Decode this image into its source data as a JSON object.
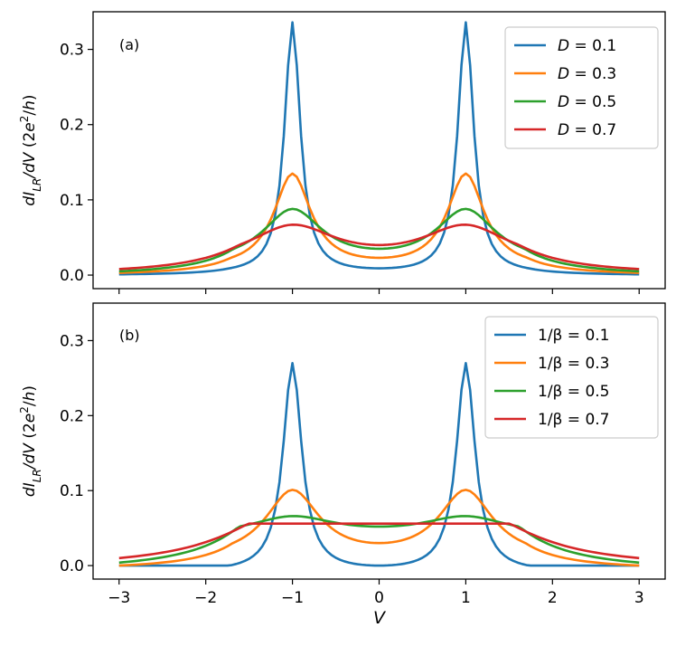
{
  "chart_data": [
    {
      "type": "line",
      "panel_label": "(a)",
      "ylabel": "dI_LR/dV (2e²/h)",
      "xlabel": "",
      "xlim": [
        -3.3,
        3.3
      ],
      "ylim": [
        -0.018,
        0.35
      ],
      "xticks": [
        -3,
        -2,
        -1,
        0,
        1,
        2,
        3
      ],
      "yticks": [
        0.0,
        0.1,
        0.2,
        0.3
      ],
      "ytick_labels": [
        "0.0",
        "0.1",
        "0.2",
        "0.3"
      ],
      "legend_position": "top-right",
      "legend_prefix": "D",
      "peak_position": 1.0,
      "series": [
        {
          "name": "D = 0.1",
          "param": "0.1",
          "color": "#1f77b4",
          "peak": 0.336,
          "valley": 0.009,
          "tail": 0.001,
          "width": 0.11
        },
        {
          "name": "D = 0.3",
          "param": "0.3",
          "color": "#ff7f0e",
          "peak": 0.135,
          "valley": 0.023,
          "tail": 0.003,
          "width": 0.26
        },
        {
          "name": "D = 0.5",
          "param": "0.5",
          "color": "#2ca02c",
          "peak": 0.088,
          "valley": 0.035,
          "tail": 0.005,
          "width": 0.42
        },
        {
          "name": "D = 0.7",
          "param": "0.7",
          "color": "#d62728",
          "peak": 0.067,
          "valley": 0.04,
          "tail": 0.008,
          "width": 0.62
        }
      ]
    },
    {
      "type": "line",
      "panel_label": "(b)",
      "ylabel": "dI_LR/dV (2e²/h)",
      "xlabel": "V",
      "xlim": [
        -3.3,
        3.3
      ],
      "ylim": [
        -0.018,
        0.35
      ],
      "xticks": [
        -3,
        -2,
        -1,
        0,
        1,
        2,
        3
      ],
      "xtick_labels": [
        "−3",
        "−2",
        "−1",
        "0",
        "1",
        "2",
        "3"
      ],
      "yticks": [
        0.0,
        0.1,
        0.2,
        0.3
      ],
      "ytick_labels": [
        "0.0",
        "0.1",
        "0.2",
        "0.3"
      ],
      "legend_position": "top-right",
      "legend_prefix": "1/β",
      "peak_position": 1.0,
      "series": [
        {
          "name": "1/β = 0.1",
          "param": "0.1",
          "color": "#1f77b4",
          "peak": 0.27,
          "valley": 0.0,
          "tail": 0.0,
          "width": 0.13
        },
        {
          "name": "1/β = 0.3",
          "param": "0.3",
          "color": "#ff7f0e",
          "peak": 0.101,
          "valley": 0.03,
          "tail": 0.0,
          "width": 0.38
        },
        {
          "name": "1/β = 0.5",
          "param": "0.5",
          "color": "#2ca02c",
          "peak": 0.066,
          "valley": 0.052,
          "tail": 0.004,
          "width": 0.62
        },
        {
          "name": "1/β = 0.7",
          "param": "0.7",
          "color": "#d62728",
          "peak": 0.056,
          "valley": 0.056,
          "tail": 0.01,
          "width": 0.85
        }
      ]
    }
  ]
}
